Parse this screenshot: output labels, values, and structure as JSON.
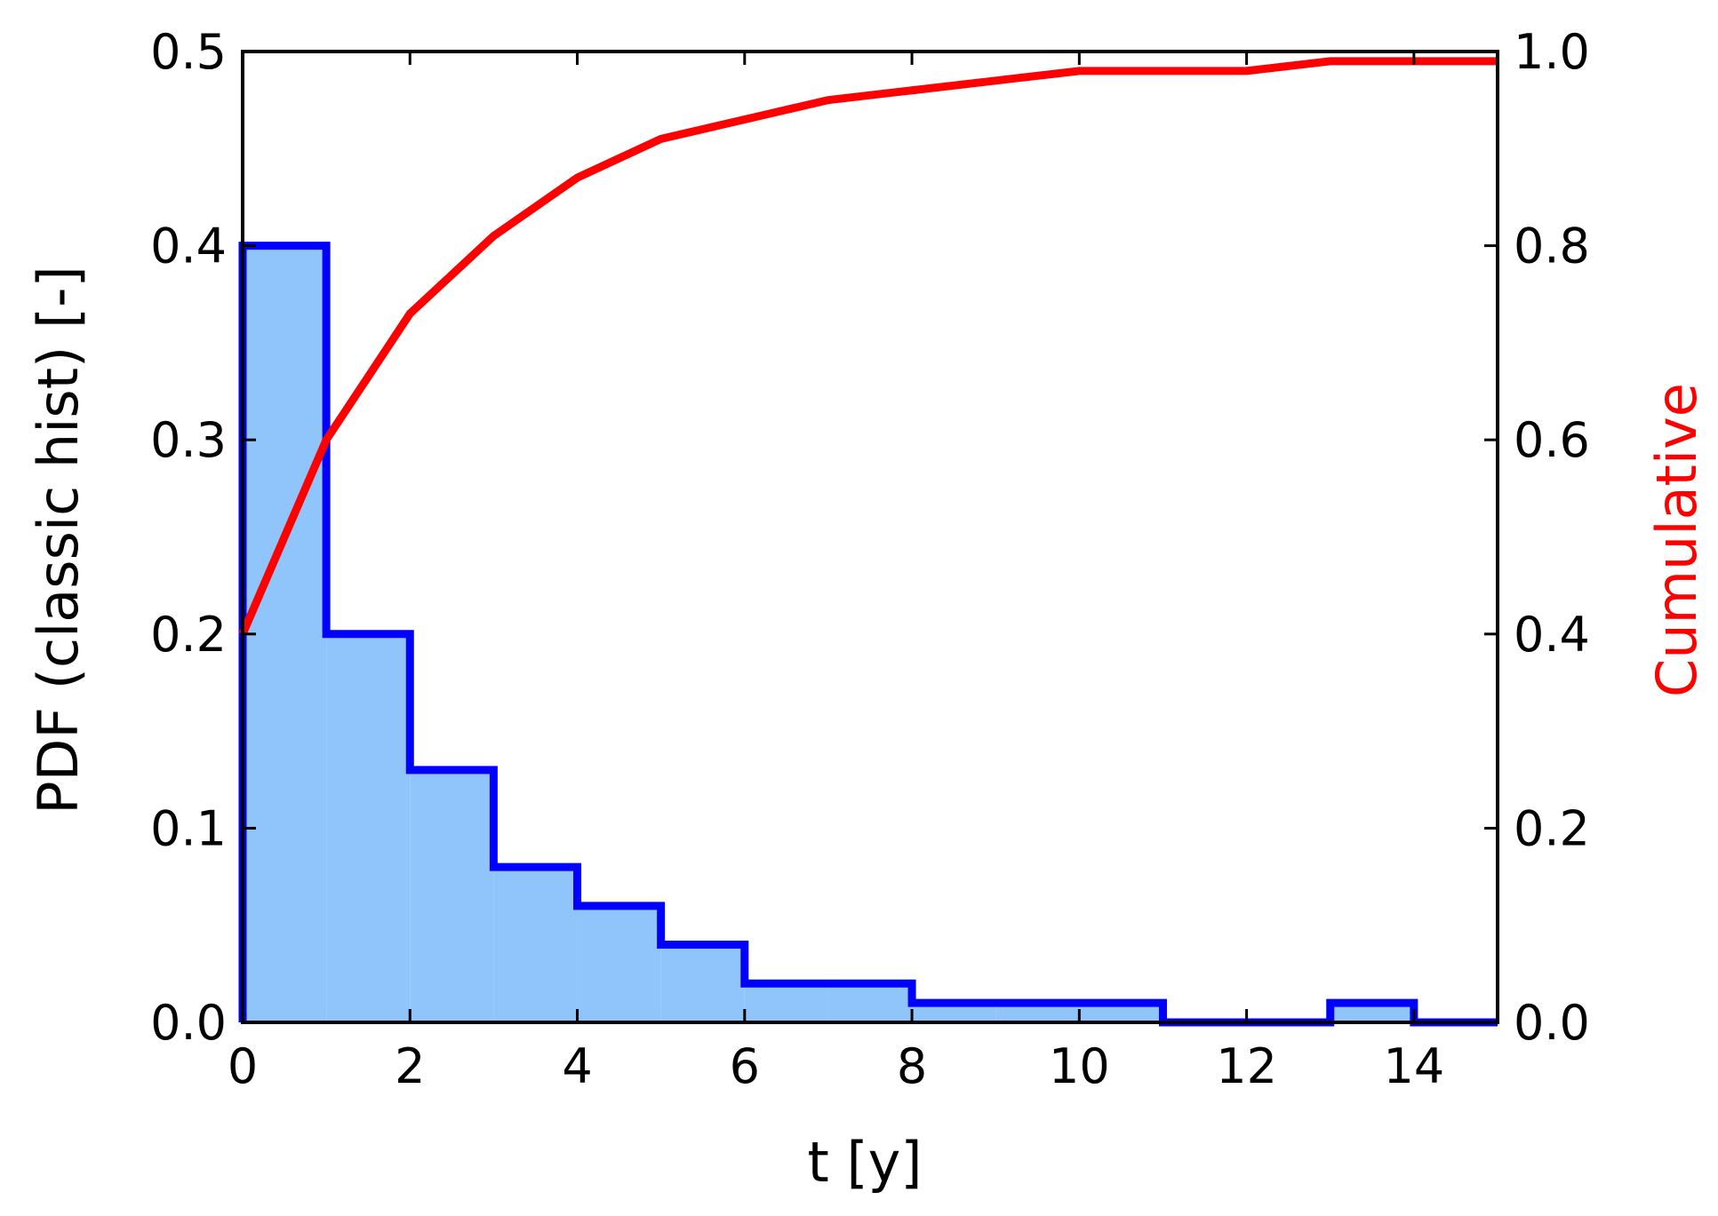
{
  "chart_data": {
    "type": "bar",
    "xlabel": "t [y]",
    "ylabel": "PDF (classic hist) [-]",
    "y2label": "Cumulative",
    "xlim": [
      0,
      15
    ],
    "ylim": [
      0,
      0.5
    ],
    "y2lim": [
      0,
      1.0
    ],
    "xticks": [
      "0",
      "2",
      "4",
      "6",
      "8",
      "10",
      "12",
      "14"
    ],
    "xtick_values": [
      0,
      2,
      4,
      6,
      8,
      10,
      12,
      14
    ],
    "yticks": [
      "0.0",
      "0.1",
      "0.2",
      "0.3",
      "0.4",
      "0.5"
    ],
    "ytick_values": [
      0,
      0.1,
      0.2,
      0.3,
      0.4,
      0.5
    ],
    "y2ticks": [
      "0.0",
      "0.2",
      "0.4",
      "0.6",
      "0.8",
      "1.0"
    ],
    "y2tick_values": [
      0,
      0.2,
      0.4,
      0.6,
      0.8,
      1.0
    ],
    "grid": false,
    "histogram": {
      "bin_edges": [
        0,
        1,
        2,
        3,
        4,
        5,
        6,
        7,
        8,
        9,
        10,
        11,
        12,
        13,
        14,
        15
      ],
      "values": [
        0.4,
        0.2,
        0.13,
        0.08,
        0.06,
        0.04,
        0.02,
        0.02,
        0.01,
        0.01,
        0.01,
        0.0,
        0.0,
        0.01,
        0.0
      ],
      "fill_color": "#90c5fb",
      "edge_color": "#0000ff"
    },
    "cumulative": {
      "x": [
        0,
        1,
        2,
        3,
        4,
        5,
        6,
        7,
        8,
        9,
        10,
        11,
        12,
        13,
        14,
        15
      ],
      "y": [
        0.4,
        0.6,
        0.73,
        0.81,
        0.87,
        0.91,
        0.93,
        0.95,
        0.96,
        0.97,
        0.98,
        0.98,
        0.98,
        0.99,
        0.99,
        0.99
      ],
      "color": "#ff0000"
    }
  }
}
